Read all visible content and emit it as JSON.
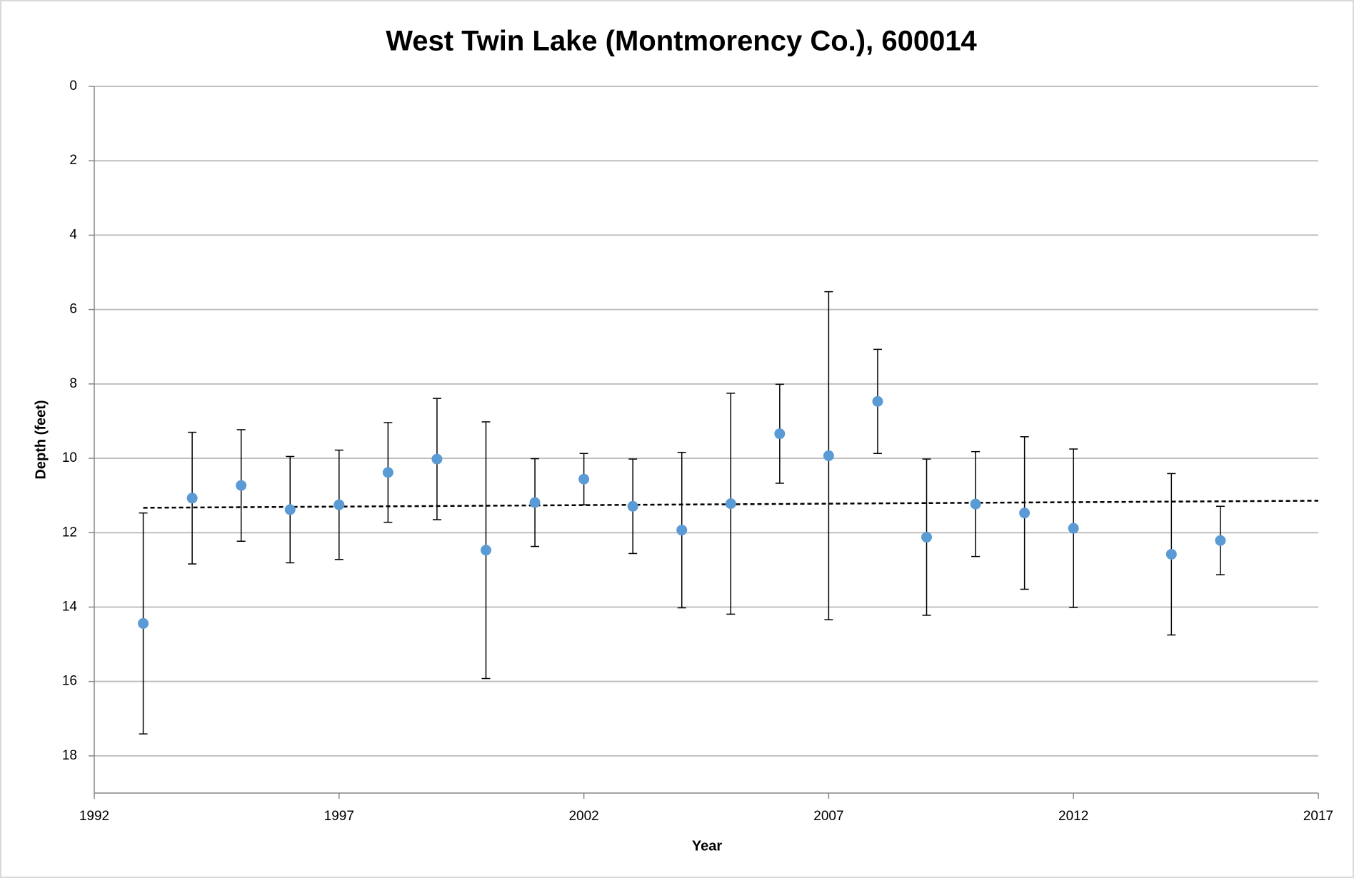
{
  "chart_data": {
    "type": "scatter",
    "title": "West Twin Lake (Montmorency Co.), 600014",
    "x_label": "Year",
    "y_label": "Depth (feet)",
    "x": [
      1993,
      1994,
      1995,
      1996,
      1997,
      1998,
      1999,
      2000,
      2001,
      2002,
      2003,
      2004,
      2005,
      2006,
      2007,
      2008,
      2009,
      2010,
      2011,
      2012,
      2014,
      2015
    ],
    "series": [
      {
        "color": "#5b9bd5",
        "values": [
          14.44,
          11.07,
          10.73,
          11.38,
          11.25,
          10.38,
          10.02,
          12.47,
          11.19,
          10.56,
          11.29,
          11.93,
          11.22,
          9.34,
          9.93,
          8.47,
          12.12,
          11.23,
          11.47,
          11.88,
          12.58,
          12.21
        ],
        "errors": [
          2.97,
          1.77,
          1.5,
          1.43,
          1.47,
          1.34,
          1.63,
          3.45,
          1.18,
          0.69,
          1.27,
          2.09,
          2.97,
          1.33,
          4.41,
          1.4,
          2.1,
          1.41,
          2.05,
          2.13,
          2.17,
          0.92
        ]
      }
    ],
    "trendline": {
      "x": [
        1993,
        2017
      ],
      "values": [
        11.33,
        11.14
      ]
    },
    "xlim": [
      1992,
      2017
    ],
    "xticks": [
      1992,
      1997,
      2002,
      2007,
      2012,
      2017
    ],
    "ylim": [
      0,
      19
    ],
    "yticks": [
      0,
      2,
      4,
      6,
      8,
      10,
      12,
      14,
      16,
      18
    ],
    "y_inverted": true,
    "grid": true
  }
}
